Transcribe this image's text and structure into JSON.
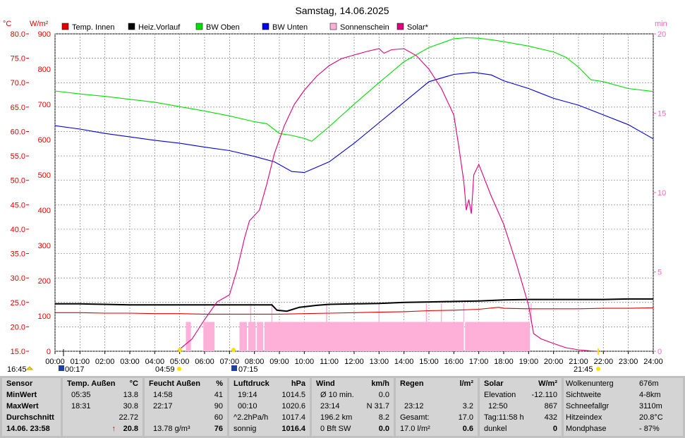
{
  "chart_data": {
    "type": "line",
    "title": "Samstag, 14.06.2025",
    "left_axis_label_c": "°C",
    "left_axis_label_w": "W/m²",
    "right_axis_label": "min",
    "ylim_celsius": [
      15.0,
      80.0
    ],
    "ylim_wm2": [
      0,
      900
    ],
    "ylim_min": [
      0,
      20
    ],
    "xlim_hours": [
      0,
      24
    ],
    "grid": true,
    "y_ticks_celsius": [
      "80.0",
      "75.0",
      "70.0",
      "65.0",
      "60.0",
      "55.0",
      "50.0",
      "45.0",
      "40.0",
      "35.0",
      "30.0",
      "25.0",
      "20.0",
      "15.0"
    ],
    "y_ticks_wm2": [
      "900",
      "800",
      "700",
      "600",
      "500",
      "400",
      "300",
      "200",
      "100",
      "0"
    ],
    "y_ticks_min": [
      "20",
      "15",
      "10",
      "5",
      "0"
    ],
    "x_ticks": [
      "00:00",
      "01:00",
      "02:00",
      "03:00",
      "04:00",
      "05:00",
      "06:00",
      "07:00",
      "08:00",
      "09:00",
      "10:00",
      "11:00",
      "12:00",
      "13:00",
      "14:00",
      "15:00",
      "16:00",
      "17:00",
      "18:00",
      "19:00",
      "20:00",
      "21:00",
      "22:00",
      "23:00",
      "24:00"
    ],
    "markers": {
      "left_time": "16:45",
      "moon_rise": "00:17",
      "sun_rise": "04:59",
      "sun_rise2": "07:15",
      "sun_set": "21:45",
      "moon_time": "21:45"
    },
    "legend": [
      {
        "name": "Temp. Innen",
        "color": "#e00000"
      },
      {
        "name": "Heiz.Vorlauf",
        "color": "#000000"
      },
      {
        "name": "BW Oben",
        "color": "#00e000"
      },
      {
        "name": "BW Unten",
        "color": "#0000e0"
      },
      {
        "name": "Sonnenschein",
        "color": "#ffb0d8"
      },
      {
        "name": "Solar*",
        "color": "#e0007a"
      }
    ],
    "series": [
      {
        "name": "BW Oben",
        "color": "#00e000",
        "axis": "celsius",
        "x": [
          0,
          1,
          2,
          3,
          4,
          5,
          6,
          7,
          8,
          8.5,
          9,
          9.5,
          10,
          10.3,
          11,
          12,
          13,
          14,
          15,
          16,
          16.5,
          17,
          17.5,
          18,
          19,
          20,
          20.5,
          21,
          21.5,
          22,
          23,
          24
        ],
        "y": [
          68.3,
          67.7,
          67.2,
          66.6,
          66.0,
          65.1,
          64.2,
          63.2,
          62.0,
          61.6,
          59.6,
          59.2,
          58.6,
          58.0,
          61.0,
          65.6,
          70.0,
          74.3,
          77.2,
          79.0,
          79.2,
          79.1,
          78.8,
          78.4,
          77.5,
          76.3,
          75.2,
          73.2,
          70.6,
          70.2,
          68.8,
          68.2
        ]
      },
      {
        "name": "BW Unten",
        "color": "#0000e0",
        "axis": "celsius",
        "x": [
          0,
          1,
          2,
          3,
          4,
          5,
          6,
          7,
          8,
          8.8,
          9.5,
          10,
          11,
          12,
          13,
          14,
          15,
          16,
          16.8,
          17.5,
          18,
          19,
          20,
          21,
          22,
          23,
          24
        ],
        "y": [
          61.2,
          60.5,
          59.6,
          58.9,
          58.2,
          57.6,
          56.8,
          56.1,
          54.9,
          53.8,
          51.8,
          51.6,
          53.8,
          57.6,
          61.8,
          66.0,
          70.2,
          71.7,
          72.1,
          71.6,
          70.4,
          68.8,
          66.8,
          65.4,
          63.4,
          61.4,
          58.5
        ]
      },
      {
        "name": "Heiz.Vorlauf",
        "color": "#000000",
        "axis": "celsius",
        "x": [
          0,
          1,
          2,
          3,
          4,
          5,
          6,
          7,
          8,
          8.7,
          8.9,
          9.3,
          9.8,
          10.5,
          11,
          12,
          13,
          14,
          15,
          16,
          17,
          18,
          19,
          20,
          21,
          22,
          23,
          24
        ],
        "y": [
          24.7,
          24.7,
          24.6,
          24.5,
          24.5,
          24.5,
          24.5,
          24.5,
          24.5,
          24.5,
          23.4,
          23.2,
          24.0,
          24.4,
          24.6,
          24.7,
          24.8,
          25.0,
          25.1,
          25.2,
          25.3,
          25.5,
          25.6,
          25.6,
          25.6,
          25.6,
          25.7,
          25.7
        ]
      },
      {
        "name": "Temp. Innen",
        "color": "#e00000",
        "axis": "celsius",
        "x": [
          0,
          1,
          2,
          3,
          4,
          5,
          6,
          7,
          8,
          9,
          10,
          11,
          12,
          13,
          14,
          15,
          16,
          17,
          17.8,
          18,
          19,
          20,
          21,
          22,
          23,
          24
        ],
        "y": [
          22.9,
          22.9,
          22.8,
          22.8,
          22.7,
          22.7,
          22.6,
          22.6,
          22.6,
          22.6,
          22.7,
          22.8,
          22.9,
          23.0,
          23.1,
          23.3,
          23.4,
          23.6,
          24.0,
          23.8,
          23.7,
          23.7,
          23.7,
          23.8,
          23.8,
          23.9
        ]
      },
      {
        "name": "Solar*",
        "color": "#e0007a",
        "axis": "wm2",
        "x": [
          4.9,
          5.5,
          6,
          6.5,
          7,
          7.3,
          7.6,
          7.8,
          8.2,
          8.5,
          8.8,
          9.2,
          9.6,
          10,
          10.5,
          11,
          11.5,
          12,
          12.5,
          13,
          13.2,
          13.5,
          14,
          14.5,
          15,
          15.5,
          16,
          16.2,
          16.4,
          16.5,
          16.6,
          16.7,
          16.8,
          17,
          17.5,
          18,
          18.5,
          19,
          19.2,
          19.5,
          20,
          20.5,
          21,
          21.5,
          21.75
        ],
        "y": [
          0,
          35,
          90,
          140,
          160,
          230,
          320,
          370,
          400,
          475,
          560,
          640,
          700,
          740,
          780,
          810,
          830,
          840,
          850,
          858,
          845,
          855,
          858,
          838,
          800,
          745,
          670,
          580,
          480,
          400,
          430,
          390,
          500,
          530,
          440,
          360,
          250,
          130,
          50,
          35,
          22,
          10,
          4,
          1,
          0
        ]
      }
    ],
    "sunshine_bars": [
      [
        5.25,
        5.45
      ],
      [
        5.95,
        6.4
      ],
      [
        7.4,
        7.7
      ],
      [
        7.75,
        8.05
      ],
      [
        8.1,
        8.35
      ],
      [
        8.4,
        16.4
      ],
      [
        16.45,
        19.05
      ]
    ],
    "sunshine_ticks": [
      7.85,
      8.7,
      10.9,
      13.0,
      14.9,
      15.5,
      16.4,
      19.1
    ]
  },
  "table": {
    "sensor": {
      "title": "Sensor",
      "rows": [
        "MinWert",
        "MaxWert",
        "Durchschnitt",
        "14.06. 23:58"
      ]
    },
    "temp": {
      "title": "Temp. Außen",
      "unit": "°C",
      "r1": [
        "05:35",
        "13.8"
      ],
      "r2": [
        "18:31",
        "30.8"
      ],
      "r3": [
        "",
        "22.72"
      ],
      "r4": [
        "↑",
        "20.8"
      ]
    },
    "feucht": {
      "title": "Feucht Außen",
      "unit": "%",
      "r1": [
        "14:58",
        "41"
      ],
      "r2": [
        "22:17",
        "90"
      ],
      "r3": [
        "",
        "60"
      ],
      "r4": [
        "13.78 g/m³",
        "76"
      ]
    },
    "luft": {
      "title": "Luftdruck",
      "unit": "hPa",
      "r1": [
        "19:14",
        "1014.5"
      ],
      "r2": [
        "00:10",
        "1020.6"
      ],
      "r3": [
        "^2.2hPa/h",
        "1017.4"
      ],
      "r4": [
        "sonnig",
        "1016.4"
      ]
    },
    "wind": {
      "title": "Wind",
      "unit": "km/h",
      "r1": [
        "Ø 10 min.",
        "0.0"
      ],
      "r2": [
        "23:14",
        "N 31.7"
      ],
      "r3": [
        "196.2 km",
        "8.2"
      ],
      "r4": [
        "0 Bft SW",
        "0.0"
      ]
    },
    "regen": {
      "title": "Regen",
      "unit": "l/m²",
      "r1": [
        "",
        ""
      ],
      "r2": [
        "23:12",
        "3.2"
      ],
      "r3": [
        "Gesamt:",
        "17.0"
      ],
      "r4": [
        "17.0 l/m²",
        "0.6"
      ]
    },
    "solar": {
      "title": "Solar",
      "unit": "W/m²",
      "r1": [
        "Elevation",
        "-12.110"
      ],
      "r2": [
        "12:50",
        "867"
      ],
      "r3": [
        "Tag:11:58 h",
        "432"
      ],
      "r4": [
        "dunkel",
        "0"
      ]
    },
    "extra": {
      "r0": [
        "Wolkenunterg",
        "676m"
      ],
      "r1": [
        "Sichtweite",
        "4-8km"
      ],
      "r2": [
        "Schneefallgr",
        "3110m"
      ],
      "r3": [
        "Hitzeindex",
        "20.8°C"
      ],
      "r4": [
        "Mondphase",
        "- 87%"
      ]
    }
  }
}
